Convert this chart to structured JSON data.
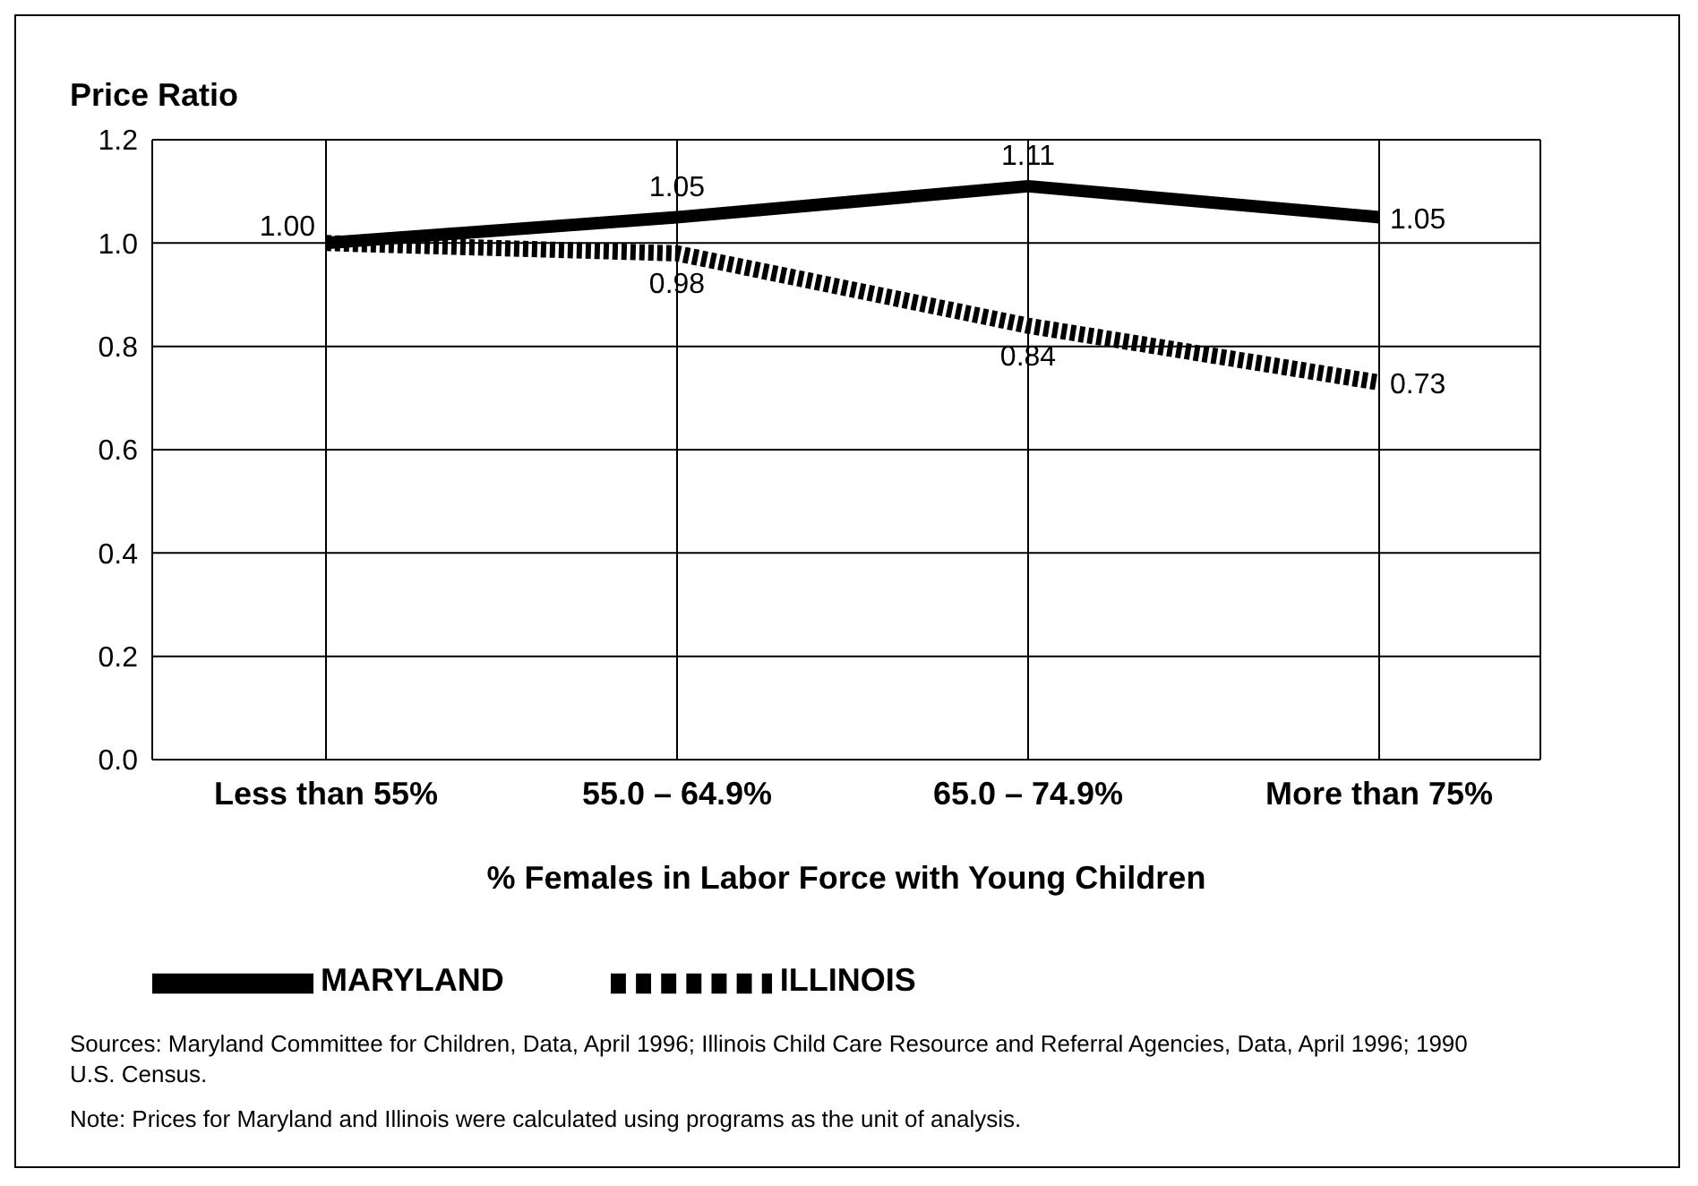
{
  "chart_data": {
    "type": "line",
    "ylabel": "Price Ratio",
    "xlabel": "% Females in Labor Force with Young Children",
    "categories": [
      "Less than 55%",
      "55.0 – 64.9%",
      "65.0 – 74.9%",
      "More than 75%"
    ],
    "series": [
      {
        "name": "MARYLAND",
        "color": "#000000",
        "line_style": "solid",
        "values": [
          1.0,
          1.05,
          1.11,
          1.05
        ],
        "value_labels": [
          "1.00",
          "1.05",
          "1.11",
          "1.05"
        ]
      },
      {
        "name": "ILLINOIS",
        "color": "#000000",
        "line_style": "dotted",
        "values": [
          1.0,
          0.98,
          0.84,
          0.73
        ],
        "value_labels": [
          null,
          "0.98",
          "0.84",
          "0.73"
        ]
      }
    ],
    "ylim": [
      0,
      1.2
    ],
    "yticks": [
      {
        "value": 0,
        "label": "0.0"
      },
      {
        "value": 0.2,
        "label": "0.2"
      },
      {
        "value": 0.4,
        "label": "0.4"
      },
      {
        "value": 0.6,
        "label": "0.6"
      },
      {
        "value": 0.8,
        "label": "0.8"
      },
      {
        "value": 1,
        "label": "1.0"
      },
      {
        "value": 1.2,
        "label": "1.2"
      }
    ],
    "grid": true,
    "legend": "bottom",
    "marker": "none",
    "annotations": [
      "Sources: Maryland Committee for Children, Data, April 1996; Illinois Child Care Resource and Referral Agencies, Data, April 1996; 1990 U.S. Census.",
      "Note: Prices for Maryland and Illinois were calculated using programs as the unit of analysis."
    ]
  }
}
